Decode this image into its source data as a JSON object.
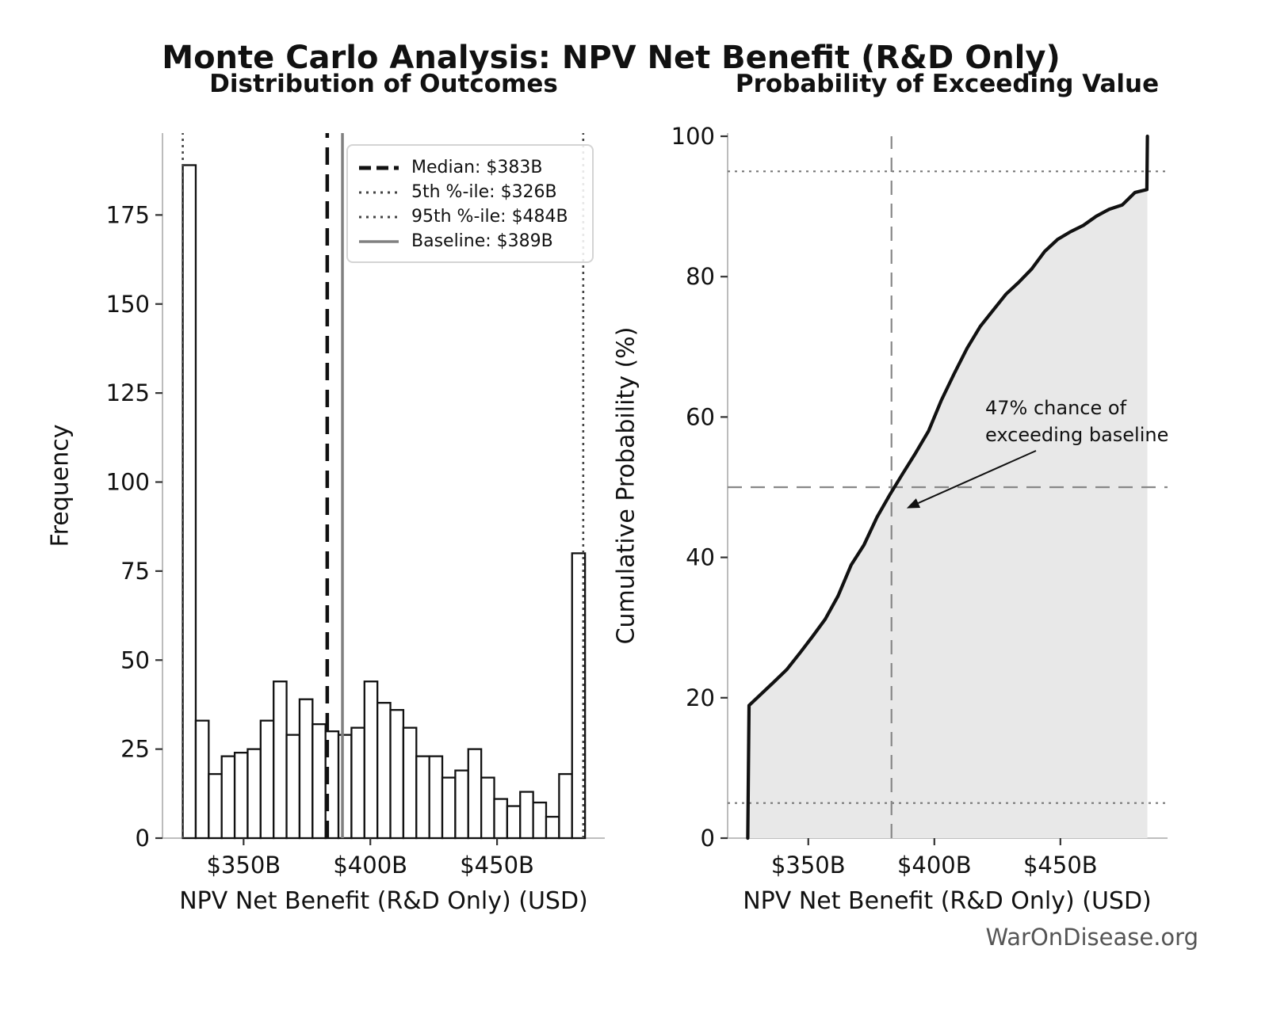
{
  "suptitle": "Monte Carlo Analysis: NPV Net Benefit (R&D Only)",
  "watermark": "WarOnDisease.org",
  "colors": {
    "bar_edge": "#111111",
    "bar_fill": "#ffffff",
    "median_line": "#111111",
    "percentile_dotted": "#444444",
    "baseline_gray": "#808080",
    "crosshair_dashed": "#888888",
    "reference_dotted": "#777777",
    "cdf_curve": "#111111",
    "cdf_fill": "#e8e8e8",
    "spine": "#b5b5b5",
    "tick": "#333333",
    "watermark": "#555555"
  },
  "chart_data": [
    {
      "type": "bar",
      "subtype": "histogram",
      "title": "Distribution of Outcomes",
      "xlabel": "NPV Net Benefit (R&D Only) (USD)",
      "ylabel": "Frequency",
      "xlim": [
        318,
        492.5
      ],
      "ylim": [
        0,
        198
      ],
      "grid": false,
      "xticks": [
        {
          "value": 350,
          "label": "$350B"
        },
        {
          "value": 400,
          "label": "$400B"
        },
        {
          "value": 450,
          "label": "$450B"
        }
      ],
      "yticks": [
        0,
        25,
        50,
        75,
        100,
        125,
        150,
        175
      ],
      "bins": {
        "start": 326,
        "width": 5.12,
        "count": 31
      },
      "frequencies": [
        189,
        33,
        18,
        23,
        24,
        25,
        33,
        44,
        29,
        39,
        32,
        30,
        29,
        31,
        44,
        38,
        36,
        31,
        23,
        23,
        17,
        19,
        25,
        17,
        11,
        9,
        13,
        10,
        6,
        18,
        80
      ],
      "reference_lines": [
        {
          "name": "median",
          "x": 383,
          "style": "dashed",
          "color": "#111111",
          "legend": "Median: $383B"
        },
        {
          "name": "p5",
          "x": 326,
          "style": "dotted",
          "color": "#444444",
          "legend": "5th %-ile: $326B"
        },
        {
          "name": "p95",
          "x": 484,
          "style": "dotted",
          "color": "#444444",
          "legend": "95th %-ile: $484B"
        },
        {
          "name": "baseline",
          "x": 389,
          "style": "solid",
          "color": "#808080",
          "legend": "Baseline: $389B"
        }
      ],
      "legend_position": "upper right"
    },
    {
      "type": "line",
      "subtype": "ecdf",
      "title": "Probability of Exceeding Value",
      "xlabel": "NPV Net Benefit (R&D Only) (USD)",
      "ylabel": "Cumulative Probability (%)",
      "xlim": [
        318,
        492.5
      ],
      "ylim": [
        0,
        100
      ],
      "grid": false,
      "xticks": [
        {
          "value": 350,
          "label": "$350B"
        },
        {
          "value": 400,
          "label": "$400B"
        },
        {
          "value": 450,
          "label": "$450B"
        }
      ],
      "yticks": [
        0,
        20,
        40,
        60,
        80,
        100
      ],
      "fill_under_curve": true,
      "cdf_points": [
        [
          326,
          0
        ],
        [
          326.5,
          18.9
        ],
        [
          336.2,
          22.2
        ],
        [
          341.4,
          24.0
        ],
        [
          346.5,
          26.3
        ],
        [
          351.6,
          28.7
        ],
        [
          356.7,
          31.2
        ],
        [
          361.8,
          34.5
        ],
        [
          367.0,
          38.9
        ],
        [
          372.1,
          41.8
        ],
        [
          377.2,
          45.7
        ],
        [
          382.3,
          48.9
        ],
        [
          387.4,
          51.9
        ],
        [
          392.6,
          54.9
        ],
        [
          397.7,
          58.0
        ],
        [
          402.8,
          62.4
        ],
        [
          407.9,
          66.2
        ],
        [
          413.0,
          69.8
        ],
        [
          418.2,
          72.9
        ],
        [
          423.3,
          75.2
        ],
        [
          428.4,
          77.5
        ],
        [
          433.5,
          79.2
        ],
        [
          438.6,
          81.1
        ],
        [
          443.8,
          83.6
        ],
        [
          448.9,
          85.3
        ],
        [
          454.0,
          86.4
        ],
        [
          459.1,
          87.3
        ],
        [
          464.2,
          88.6
        ],
        [
          469.4,
          89.6
        ],
        [
          474.5,
          90.2
        ],
        [
          479.6,
          92.0
        ],
        [
          484.3,
          92.4
        ],
        [
          484.5,
          100
        ]
      ],
      "hlines": [
        {
          "y": 5,
          "style": "dotted",
          "color": "#777777"
        },
        {
          "y": 50,
          "style": "dashed",
          "color": "#888888"
        },
        {
          "y": 95,
          "style": "dotted",
          "color": "#777777"
        }
      ],
      "vlines": [
        {
          "x": 383,
          "style": "dashed",
          "color": "#888888"
        }
      ],
      "annotation": {
        "line1": "47% chance of",
        "line2": "exceeding baseline",
        "arrow_tip_x": 389,
        "arrow_tip_y": 47
      }
    }
  ]
}
